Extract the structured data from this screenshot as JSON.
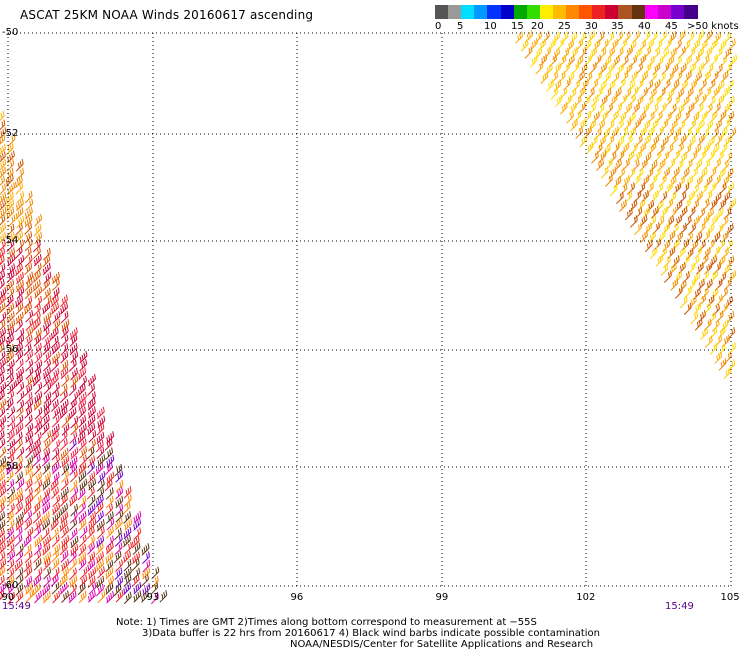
{
  "header": {
    "title": "ASCAT 25KM NOAA Winds 20160617 ascending"
  },
  "colorbar": {
    "segments": [
      {
        "color": "#555555"
      },
      {
        "color": "#999999"
      },
      {
        "color": "#00ddff"
      },
      {
        "color": "#0099ff"
      },
      {
        "color": "#0033ff"
      },
      {
        "color": "#0000cc"
      },
      {
        "color": "#00aa00"
      },
      {
        "color": "#33dd00"
      },
      {
        "color": "#ffee00"
      },
      {
        "color": "#ffbb00"
      },
      {
        "color": "#ff8800"
      },
      {
        "color": "#ff5500"
      },
      {
        "color": "#ee2222"
      },
      {
        "color": "#cc0033"
      },
      {
        "color": "#aa5522"
      },
      {
        "color": "#663311"
      },
      {
        "color": "#ff00ff"
      },
      {
        "color": "#cc00cc"
      },
      {
        "color": "#7700cc"
      },
      {
        "color": "#440088"
      }
    ],
    "labels": [
      "0",
      "5",
      "10",
      "15",
      "20",
      "25",
      "30",
      "35",
      "40",
      "45",
      ">50 knots"
    ]
  },
  "map": {
    "lat_labels": [
      "-50",
      "-52",
      "-54",
      "-56",
      "-58",
      "-60"
    ],
    "lon_labels": [
      "90",
      "93",
      "96",
      "99",
      "102",
      "105"
    ],
    "lon_range": [
      90,
      105
    ],
    "lat_range": [
      -60,
      -50
    ],
    "gridlines": "dotted",
    "time_left": "15:49",
    "time_right": "15:49"
  },
  "notes": {
    "line1": "Note: 1) Times are GMT 2)Times along bottom correspond to measurement at −55S",
    "line2": "3)Data buffer is 22 hrs from 20160617 4) Black wind barbs indicate possible contamination",
    "line3": "NOAA/NESDIS/Center for Satellite Applications and Research"
  }
}
